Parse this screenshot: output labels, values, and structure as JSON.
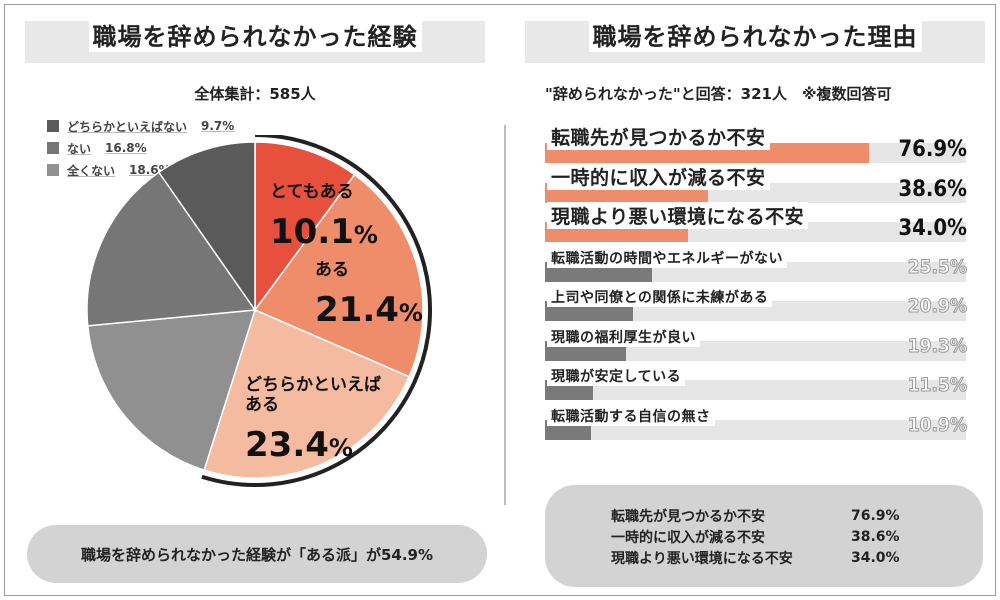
{
  "left": {
    "title": "職場を辞められなかった経験",
    "subtitle": "全体集計：585人",
    "summary": "職場を辞められなかった経験が「ある派」が54.9%"
  },
  "right": {
    "title": "職場を辞められなかった理由",
    "subtitle": "\"辞められなかった\"と回答：321人　※複数回答可",
    "summary_rows": [
      {
        "label": "転職先が見つかるか不安",
        "value": "76.9%"
      },
      {
        "label": "一時的に収入が減る不安",
        "value": "38.6%"
      },
      {
        "label": "現職より悪い環境になる不安",
        "value": "34.0%"
      }
    ]
  },
  "colors": {
    "red": "#e8503e",
    "orange": "#ef8c6a",
    "peach": "#f5bba0",
    "dark_gray": "#5a5a5a",
    "mid_gray": "#767676",
    "light_gray": "#909090",
    "bar_top": "#ef8c6a",
    "bar_low": "#7a7a7a"
  },
  "chart_data": [
    {
      "type": "pie",
      "title": "職場を辞められなかった経験",
      "total_label": "全体集計：585人",
      "slices": [
        {
          "name": "とてもある",
          "value": 10.1,
          "value_label": "10.1%",
          "color": "#e8503e",
          "in_legend": false
        },
        {
          "name": "ある",
          "value": 21.4,
          "value_label": "21.4%",
          "color": "#ef8c6a",
          "in_legend": false
        },
        {
          "name": "どちらかといえばある",
          "value": 23.4,
          "value_label": "23.4%",
          "color": "#f5bba0",
          "in_legend": false
        },
        {
          "name": "全くない",
          "value": 18.6,
          "value_label": "18.6%",
          "color": "#909090",
          "in_legend": true
        },
        {
          "name": "ない",
          "value": 16.8,
          "value_label": "16.8%",
          "color": "#767676",
          "in_legend": true
        },
        {
          "name": "どちらかといえばない",
          "value": 9.7,
          "value_label": "9.7%",
          "color": "#5a5a5a",
          "in_legend": true
        }
      ],
      "legend_order": [
        "どちらかといえばない",
        "ない",
        "全くない"
      ],
      "inside_labels": [
        {
          "lines": [
            "とてもある"
          ],
          "value_label": "10.1",
          "unit": "%"
        },
        {
          "lines": [
            "ある"
          ],
          "value_label": "21.4",
          "unit": "%"
        },
        {
          "lines": [
            "どちらかといえば",
            "ある"
          ],
          "value_label": "23.4",
          "unit": "%"
        }
      ]
    },
    {
      "type": "bar",
      "orientation": "horizontal",
      "title": "職場を辞められなかった理由",
      "xlim": [
        0,
        100
      ],
      "categories": [
        "転職先が見つかるか不安",
        "一時的に収入が減る不安",
        "現職より悪い環境になる不安",
        "転職活動の時間やエネルギーがない",
        "上司や同僚との関係に未練がある",
        "現職の福利厚生が良い",
        "現職が安定している",
        "転職活動する自信の無さ"
      ],
      "values": [
        76.9,
        38.6,
        34.0,
        25.5,
        20.9,
        19.3,
        11.5,
        10.9
      ],
      "value_labels": [
        "76.9%",
        "38.6%",
        "34.0%",
        "25.5%",
        "20.9%",
        "19.3%",
        "11.5%",
        "10.9%"
      ],
      "highlight_top": 3
    }
  ]
}
